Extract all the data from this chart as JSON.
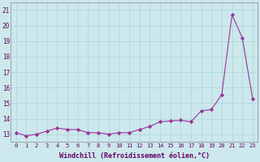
{
  "x": [
    0,
    1,
    2,
    3,
    4,
    5,
    6,
    7,
    8,
    9,
    10,
    11,
    12,
    13,
    14,
    15,
    16,
    17,
    18,
    19,
    20,
    21,
    22,
    23
  ],
  "y": [
    13.1,
    12.9,
    13.0,
    13.2,
    13.4,
    13.3,
    13.3,
    13.1,
    13.1,
    13.0,
    13.1,
    13.1,
    13.3,
    13.5,
    13.8,
    13.85,
    13.9,
    13.8,
    14.5,
    14.6,
    15.55,
    20.7,
    19.2,
    15.3
  ],
  "line_color": "#993399",
  "marker_color": "#993399",
  "bg_color": "#cce8ec",
  "grid_color": "#b0d8dc",
  "xlabel": "Windchill (Refroidissement éolien,°C)",
  "ylim": [
    12.5,
    21.5
  ],
  "xlim": [
    -0.5,
    23.5
  ],
  "yticks": [
    13,
    14,
    15,
    16,
    17,
    18,
    19,
    20,
    21
  ],
  "xticks": [
    0,
    1,
    2,
    3,
    4,
    5,
    6,
    7,
    8,
    9,
    10,
    11,
    12,
    13,
    14,
    15,
    16,
    17,
    18,
    19,
    20,
    21,
    22,
    23
  ],
  "figsize": [
    3.2,
    2.0
  ],
  "dpi": 100
}
